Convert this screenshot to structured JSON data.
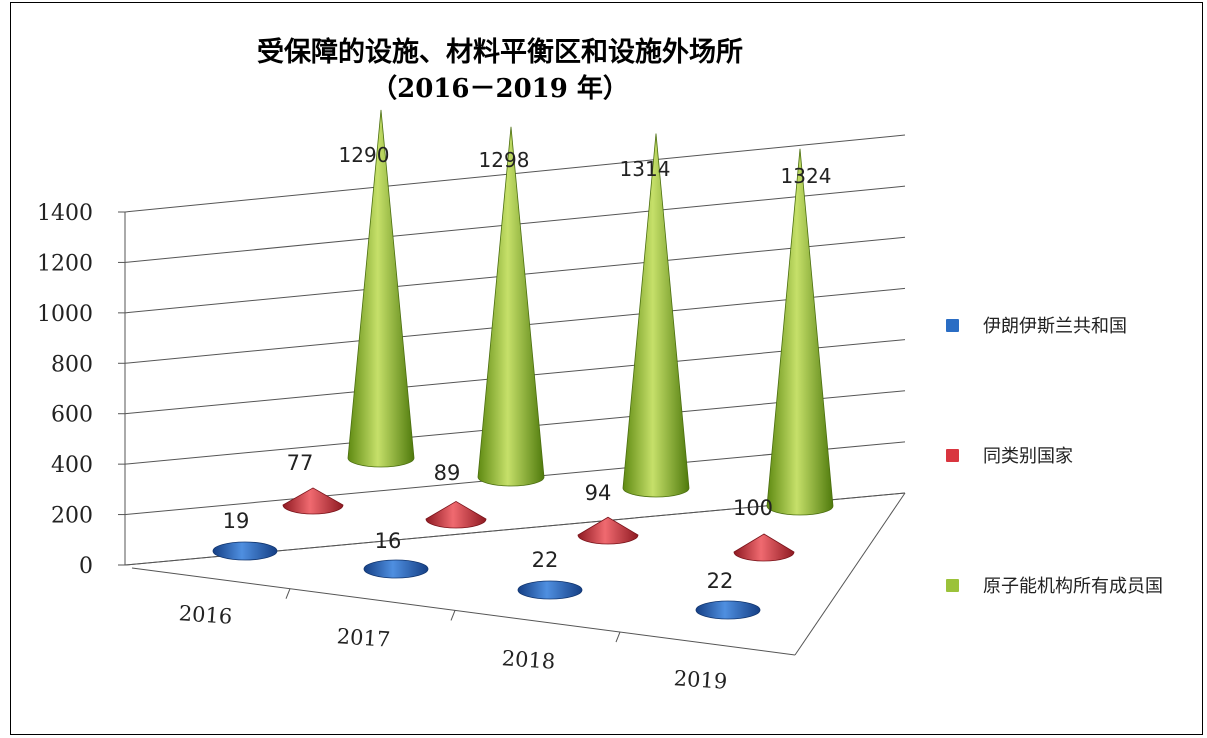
{
  "title_line1": "受保障的设施、材料平衡区和设施外场所",
  "title_line2": "（2016－2019 年）",
  "chart_data": {
    "type": "bar",
    "shape": "3d-cone",
    "title": "受保障的设施、材料平衡区和设施外场所（2016－2019 年）",
    "categories": [
      "2016",
      "2017",
      "2018",
      "2019"
    ],
    "series": [
      {
        "name": "伊朗伊斯兰共和国",
        "color": "#1f5fb5",
        "values": [
          19,
          16,
          22,
          22
        ],
        "labels": [
          "19",
          "16",
          "22",
          "22"
        ]
      },
      {
        "name": "同类别国家",
        "color": "#cc2b36",
        "values": [
          77,
          89,
          94,
          100
        ],
        "labels": [
          "77",
          "89",
          "94",
          "100"
        ]
      },
      {
        "name": "原子能机构所有成员国",
        "color": "#8fbc2f",
        "values": [
          1290,
          1298,
          1314,
          1324
        ],
        "labels": [
          "1290",
          "1298",
          "1314",
          "1324"
        ]
      }
    ],
    "y_ticks": [
      "0",
      "200",
      "400",
      "600",
      "800",
      "1000",
      "1200",
      "1400"
    ],
    "ylim": [
      0,
      1400
    ],
    "grid": true,
    "legend_position": "right"
  }
}
